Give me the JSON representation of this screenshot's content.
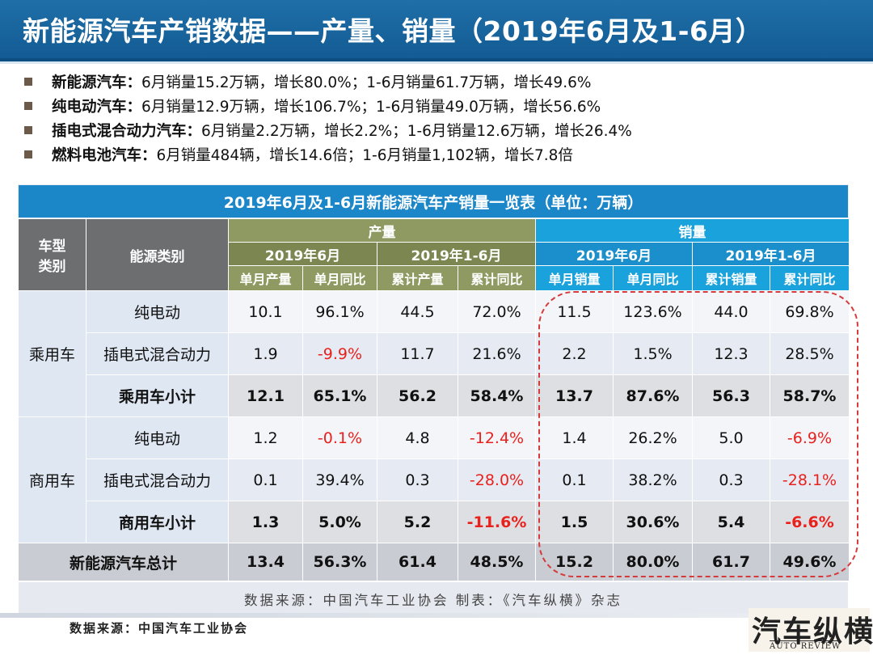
{
  "title": "新能源汽车产销数据——产量、销量（2019年6月及1-6月）",
  "bullets": [
    {
      "label": "新能源汽车：",
      "text": "6月销量15.2万辆，增长80.0%；1-6月销量61.7万辆，增长49.6%"
    },
    {
      "label": "纯电动汽车：",
      "text": "6月销量12.9万辆，增长106.7%；1-6月销量49.0万辆，增长56.6%"
    },
    {
      "label": "插电式混合动力汽车：",
      "text": "6月销量2.2万辆，增长2.2%；1-6月销量12.6万辆，增长26.4%"
    },
    {
      "label": "燃料电池汽车：",
      "text": "6月销量484辆，增长14.6倍；1-6月销量1,102辆，增长7.8倍"
    }
  ],
  "table": {
    "title": "2019年6月及1-6月新能源汽车产销量一览表（单位：万辆）",
    "h_vehicle_type": "车型\n类别",
    "h_vehicle_type_1": "车型",
    "h_vehicle_type_2": "类别",
    "h_energy": "能源类别",
    "h_production": "产量",
    "h_sales": "销量",
    "h_period_jun": "2019年6月",
    "h_period_h1": "2019年1-6月",
    "h_cols": [
      "单月产量",
      "单月同比",
      "累计产量",
      "累计同比",
      "单月销量",
      "单月同比",
      "累计销量",
      "累计同比"
    ],
    "groups": [
      {
        "category": "乘用车",
        "rows": [
          {
            "label": "纯电动",
            "values": [
              "10.1",
              "96.1%",
              "44.5",
              "72.0%",
              "11.5",
              "123.6%",
              "44.0",
              "69.8%"
            ]
          },
          {
            "label": "插电式混合动力",
            "values": [
              "1.9",
              "-9.9%",
              "11.7",
              "21.6%",
              "2.2",
              "1.5%",
              "12.3",
              "28.5%"
            ]
          },
          {
            "label": "乘用车小计",
            "values": [
              "12.1",
              "65.1%",
              "56.2",
              "58.4%",
              "13.7",
              "87.6%",
              "56.3",
              "58.7%"
            ]
          }
        ]
      },
      {
        "category": "商用车",
        "rows": [
          {
            "label": "纯电动",
            "values": [
              "1.2",
              "-0.1%",
              "4.8",
              "-12.4%",
              "1.4",
              "26.2%",
              "5.0",
              "-6.9%"
            ]
          },
          {
            "label": "插电式混合动力",
            "values": [
              "0.1",
              "39.4%",
              "0.3",
              "-28.0%",
              "0.1",
              "38.2%",
              "0.3",
              "-28.1%"
            ]
          },
          {
            "label": "商用车小计",
            "values": [
              "1.3",
              "5.0%",
              "5.2",
              "-11.6%",
              "1.5",
              "30.6%",
              "5.4",
              "-6.6%"
            ]
          }
        ]
      }
    ],
    "total": {
      "label": "新能源汽车总计",
      "values": [
        "13.4",
        "56.3%",
        "61.4",
        "48.5%",
        "15.2",
        "80.0%",
        "61.7",
        "49.6%"
      ]
    },
    "source_line": "数据来源：中国汽车工业协会      制表：《汽车纵横》杂志"
  },
  "footer": {
    "source": "数据来源：中国汽车工业协会"
  },
  "logo": {
    "main": "汽车纵横",
    "sub": "AUTO REVIEW"
  },
  "colors": {
    "header_blue": "#1b86c8",
    "negative": "#e8211d",
    "olive": "#8f9a63",
    "cyan": "#1aa2dc"
  }
}
